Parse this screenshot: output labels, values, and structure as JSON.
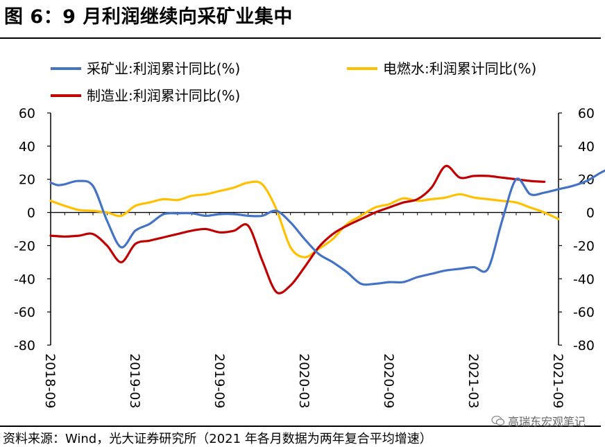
{
  "title": "图 6：9 月利润继续向采矿业集中",
  "source": "资料来源：Wind，光大证券研究所（2021 年各月数据为两年复合平均增速）",
  "watermark": "高瑞东宏观笔记",
  "chart_data": {
    "type": "line",
    "title": "图 6：9 月利润继续向采矿业集中",
    "x_tick_labels": [
      "2018-09",
      "2019-03",
      "2019-09",
      "2020-03",
      "2020-09",
      "2021-03",
      "2021-09"
    ],
    "ylim": [
      -80,
      60
    ],
    "y_ticks": [
      60,
      40,
      20,
      0,
      -20,
      -40,
      -60,
      -80
    ],
    "y_tick_labels": [
      "60",
      "40",
      "20",
      "0",
      "-20",
      "-40",
      "-60",
      "-80"
    ],
    "legend_placement": "top",
    "grid": false,
    "series": [
      {
        "name": "采矿业:利润累计同比(%)",
        "color": "#4472C4",
        "points": [
          [
            0,
            18
          ],
          [
            0.5,
            16.5
          ],
          [
            1,
            17
          ],
          [
            2,
            19
          ],
          [
            3,
            16
          ],
          [
            4,
            -5
          ],
          [
            5,
            -21
          ],
          [
            6,
            -11
          ],
          [
            7,
            -7
          ],
          [
            8,
            -1
          ],
          [
            9,
            -0.5
          ],
          [
            10,
            -0.5
          ],
          [
            11,
            -2
          ],
          [
            12,
            -1
          ],
          [
            13,
            -1
          ],
          [
            14,
            -2
          ],
          [
            15,
            -2
          ],
          [
            16,
            1
          ],
          [
            17,
            -6
          ],
          [
            18,
            -16
          ],
          [
            19,
            -25
          ],
          [
            20,
            -30
          ],
          [
            21,
            -36
          ],
          [
            22,
            -43
          ],
          [
            23,
            -43
          ],
          [
            24,
            -42
          ],
          [
            25,
            -42
          ],
          [
            26,
            -39
          ],
          [
            27,
            -37
          ],
          [
            28,
            -35
          ],
          [
            29,
            -34
          ],
          [
            30,
            -33
          ],
          [
            31,
            -34
          ],
          [
            32,
            -5
          ],
          [
            33,
            20
          ],
          [
            34,
            11
          ],
          [
            35,
            12
          ],
          [
            36,
            14
          ],
          [
            37,
            16
          ],
          [
            38,
            19
          ],
          [
            39,
            24
          ],
          [
            40,
            28
          ]
        ]
      },
      {
        "name": "电燃水:利润累计同比(%)",
        "color": "#FFC000",
        "points": [
          [
            0,
            7
          ],
          [
            1,
            4
          ],
          [
            2,
            1.5
          ],
          [
            3,
            1
          ],
          [
            4,
            0
          ],
          [
            5,
            -2
          ],
          [
            6,
            4
          ],
          [
            7,
            6
          ],
          [
            8,
            8
          ],
          [
            9,
            7.5
          ],
          [
            10,
            10
          ],
          [
            11,
            11
          ],
          [
            12,
            13
          ],
          [
            13,
            15
          ],
          [
            14,
            18
          ],
          [
            15,
            17
          ],
          [
            16,
            2
          ],
          [
            17,
            -21
          ],
          [
            18,
            -27
          ],
          [
            19,
            -22
          ],
          [
            20,
            -16
          ],
          [
            21,
            -7
          ],
          [
            22,
            -2
          ],
          [
            23,
            3
          ],
          [
            24,
            5
          ],
          [
            25,
            8.5
          ],
          [
            26,
            7
          ],
          [
            27,
            8
          ],
          [
            28,
            9
          ],
          [
            29,
            11
          ],
          [
            30,
            9
          ],
          [
            31,
            8
          ],
          [
            32,
            7
          ],
          [
            33,
            6
          ],
          [
            34,
            3
          ],
          [
            35,
            0
          ],
          [
            36,
            -4
          ]
        ]
      },
      {
        "name": "制造业:利润累计同比(%)",
        "color": "#C00000",
        "points": [
          [
            0,
            -14
          ],
          [
            1,
            -14.5
          ],
          [
            2,
            -14
          ],
          [
            3,
            -13
          ],
          [
            4,
            -20
          ],
          [
            5,
            -30
          ],
          [
            6,
            -19
          ],
          [
            7,
            -17
          ],
          [
            8,
            -15
          ],
          [
            9,
            -13
          ],
          [
            10,
            -11
          ],
          [
            11,
            -10
          ],
          [
            12,
            -12
          ],
          [
            13,
            -11
          ],
          [
            14,
            -8
          ],
          [
            15,
            -29
          ],
          [
            16,
            -48
          ],
          [
            17,
            -44
          ],
          [
            18,
            -33
          ],
          [
            19,
            -21
          ],
          [
            20,
            -13
          ],
          [
            21,
            -8
          ],
          [
            22,
            -4
          ],
          [
            23,
            0
          ],
          [
            24,
            3
          ],
          [
            25,
            6
          ],
          [
            26,
            8
          ],
          [
            27,
            15
          ],
          [
            28,
            28
          ],
          [
            29,
            21
          ],
          [
            30,
            22
          ],
          [
            31,
            22
          ],
          [
            32,
            21
          ],
          [
            33,
            20
          ],
          [
            34,
            19
          ],
          [
            35,
            18.5
          ]
        ]
      }
    ]
  }
}
